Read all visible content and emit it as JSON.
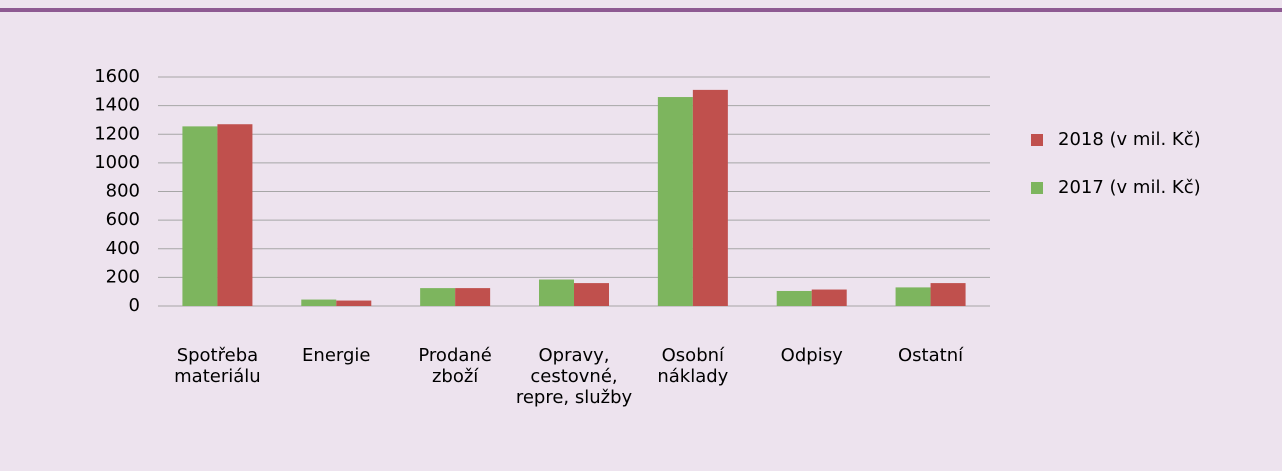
{
  "chart_data": {
    "type": "bar",
    "categories": [
      "Spotřeba\nmateriálu",
      "Energie",
      "Prodané\nzboží",
      "Opravy,\ncestovné,\nrepre, služby",
      "Osobní\nnáklady",
      "Odpisy",
      "Ostatní"
    ],
    "series": [
      {
        "name": "2017 (v mil. Kč)",
        "color": "#7db55e",
        "values": [
          1255,
          45,
          125,
          185,
          1460,
          105,
          130
        ]
      },
      {
        "name": "2018 (v mil. Kč)",
        "color": "#c0504d",
        "values": [
          1270,
          38,
          125,
          160,
          1510,
          115,
          160
        ]
      }
    ],
    "ylim": [
      0,
      1600
    ],
    "yticks": [
      0,
      200,
      400,
      600,
      800,
      1000,
      1200,
      1400,
      1600
    ],
    "grid": true
  }
}
